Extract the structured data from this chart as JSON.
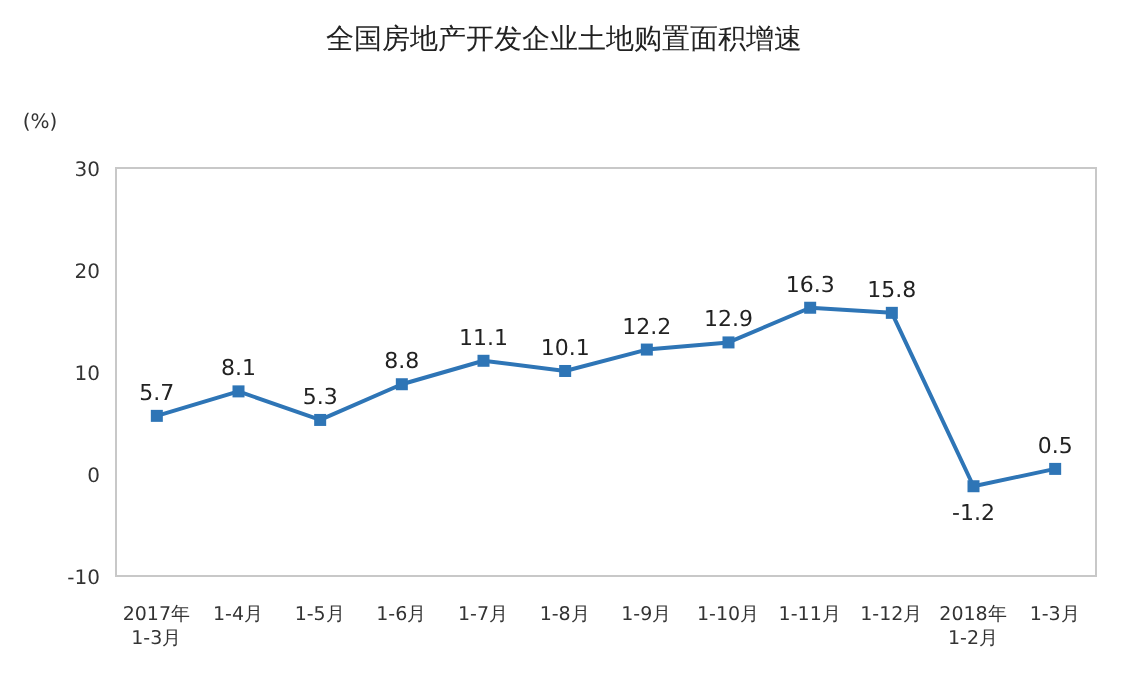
{
  "chart_data": {
    "type": "line",
    "title": "全国房地产开发企业土地购置面积增速",
    "ylabel": "(%)",
    "categories": [
      "2017年\n1-3月",
      "1-4月",
      "1-5月",
      "1-6月",
      "1-7月",
      "1-8月",
      "1-9月",
      "1-10月",
      "1-11月",
      "1-12月",
      "2018年\n1-2月",
      "1-3月"
    ],
    "series": [
      {
        "color": "#2e75b6",
        "values": [
          5.7,
          8.1,
          5.3,
          8.8,
          11.1,
          10.1,
          12.2,
          12.9,
          16.3,
          15.8,
          -1.2,
          0.5
        ]
      }
    ],
    "ylim": [
      -10,
      30
    ],
    "yticks": [
      -10,
      0,
      10,
      20,
      30
    ],
    "data_labels": true,
    "marker": "square",
    "grid": false
  }
}
